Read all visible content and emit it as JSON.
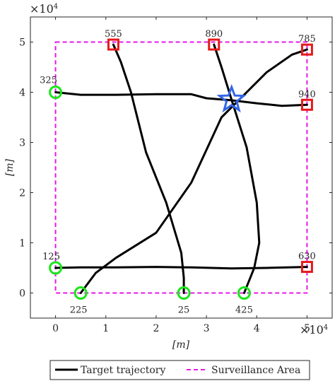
{
  "chart_data": {
    "type": "line",
    "xlabel": "[m]",
    "ylabel": "[m]",
    "x_exponent": "×10^4",
    "y_exponent": "×10^4",
    "x_exponent_base": "×10",
    "y_exponent_base": "×10",
    "x_exponent_power": "4",
    "y_exponent_power": "4",
    "xlim": [
      -5000,
      55000
    ],
    "ylim": [
      -5000,
      55000
    ],
    "xticks": [
      0,
      10000,
      20000,
      30000,
      40000,
      50000
    ],
    "yticks": [
      0,
      10000,
      20000,
      30000,
      40000,
      50000
    ],
    "xtick_labels": [
      "0",
      "1",
      "2",
      "3",
      "4",
      "5"
    ],
    "ytick_labels": [
      "0",
      "1",
      "2",
      "3",
      "4",
      "5"
    ],
    "grid": false,
    "legend_position": "bottom-outside",
    "legend": [
      {
        "label": "Target trajectory",
        "style": "solid",
        "color": "#000000"
      },
      {
        "label": "Surveillance Area",
        "style": "dashed",
        "color": "#e619e6"
      }
    ],
    "surveillance_area": {
      "x": [
        0,
        50000
      ],
      "y": [
        0,
        50000
      ],
      "color": "#e619e6"
    },
    "trajectories": [
      {
        "points": [
          [
            0,
            40000
          ],
          [
            5000,
            39500
          ],
          [
            12000,
            39500
          ],
          [
            20000,
            39600
          ],
          [
            27000,
            39600
          ],
          [
            30000,
            38800
          ],
          [
            35000,
            38400
          ],
          [
            40000,
            37800
          ],
          [
            45000,
            37300
          ],
          [
            50000,
            37500
          ]
        ]
      },
      {
        "points": [
          [
            0,
            5000
          ],
          [
            5000,
            5100
          ],
          [
            12000,
            5100
          ],
          [
            20000,
            5200
          ],
          [
            27000,
            5100
          ],
          [
            35000,
            4900
          ],
          [
            42000,
            5000
          ],
          [
            50000,
            5200
          ]
        ]
      },
      {
        "points": [
          [
            11500,
            49500
          ],
          [
            13000,
            46000
          ],
          [
            15000,
            40000
          ],
          [
            18000,
            28000
          ],
          [
            22000,
            18000
          ],
          [
            25000,
            8000
          ],
          [
            25500,
            3000
          ],
          [
            25500,
            0
          ]
        ]
      },
      {
        "points": [
          [
            31500,
            49500
          ],
          [
            33000,
            45000
          ],
          [
            35000,
            38500
          ],
          [
            38000,
            29000
          ],
          [
            40000,
            18000
          ],
          [
            40500,
            10000
          ],
          [
            39500,
            5000
          ],
          [
            37500,
            0
          ]
        ]
      },
      {
        "points": [
          [
            5000,
            0
          ],
          [
            8000,
            4000
          ],
          [
            12000,
            7000
          ],
          [
            20000,
            12000
          ],
          [
            27000,
            22000
          ],
          [
            33000,
            35000
          ],
          [
            36000,
            38000
          ],
          [
            42000,
            44000
          ],
          [
            47000,
            47500
          ],
          [
            50000,
            48500
          ]
        ]
      }
    ],
    "start_markers": {
      "color": "#19e619",
      "points": [
        {
          "label": "325",
          "x": 0,
          "y": 40000
        },
        {
          "label": "125",
          "x": 0,
          "y": 5000
        },
        {
          "label": "225",
          "x": 5000,
          "y": 0
        },
        {
          "label": "25",
          "x": 25500,
          "y": 0
        },
        {
          "label": "425",
          "x": 37500,
          "y": 0
        }
      ]
    },
    "end_markers": {
      "color": "#e61919",
      "points": [
        {
          "label": "555",
          "x": 11500,
          "y": 49500
        },
        {
          "label": "890",
          "x": 31500,
          "y": 49500
        },
        {
          "label": "785",
          "x": 50000,
          "y": 48500
        },
        {
          "label": "940",
          "x": 50000,
          "y": 37500
        },
        {
          "label": "630",
          "x": 50000,
          "y": 5200
        }
      ]
    },
    "star_marker": {
      "x": 35000,
      "y": 38500,
      "color": "#3366e6"
    }
  }
}
